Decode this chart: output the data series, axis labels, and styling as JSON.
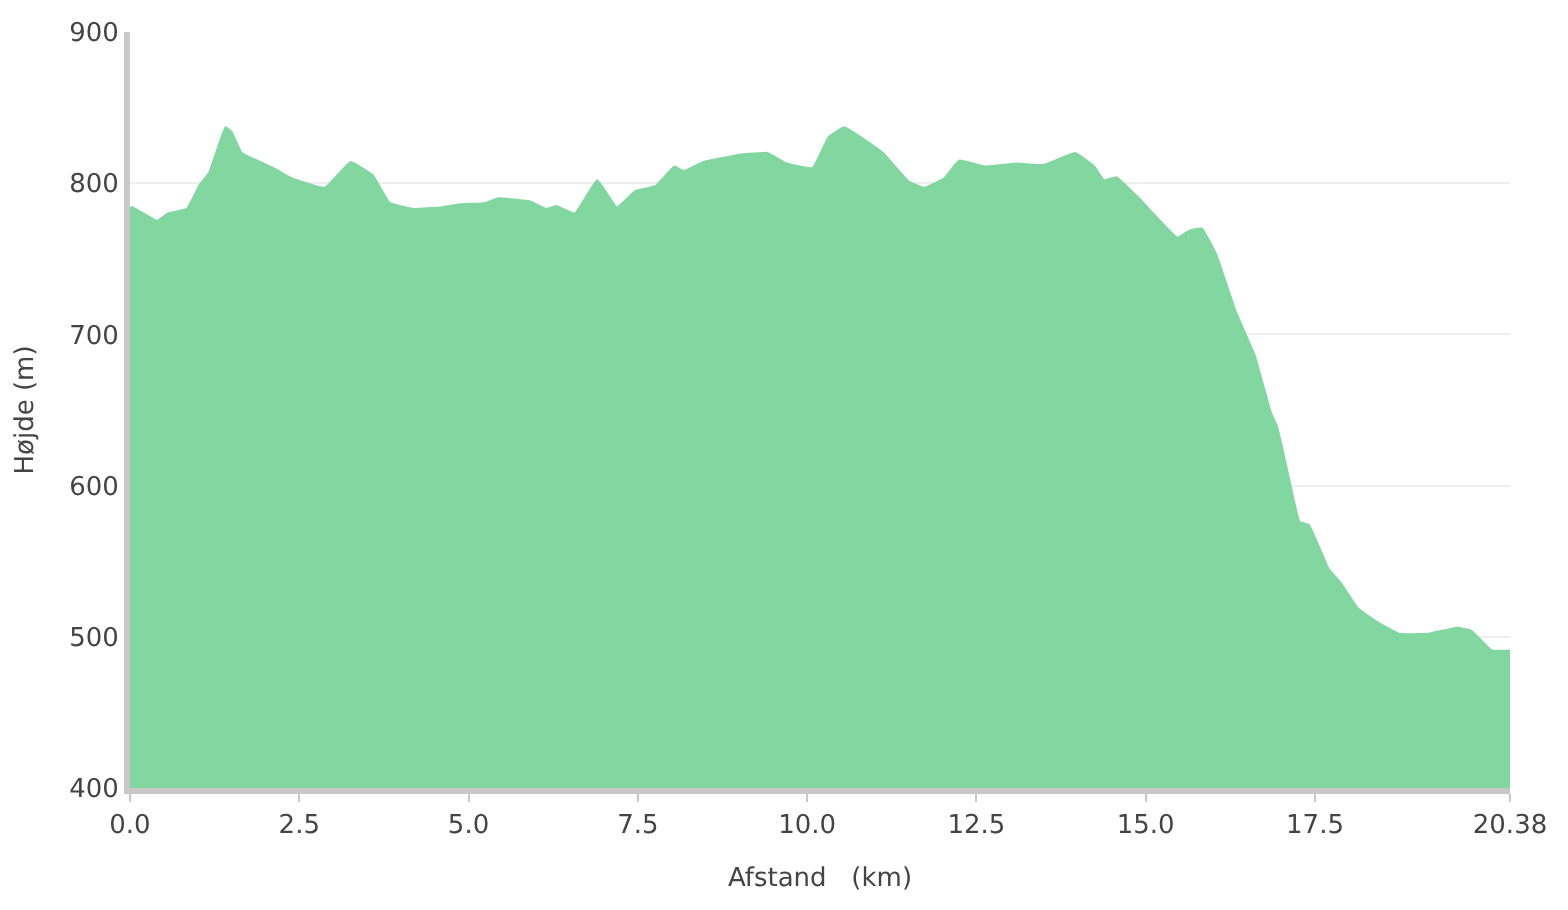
{
  "chart_data": {
    "type": "area",
    "xlabel": "Afstand   (km)",
    "ylabel": "Højde (m)",
    "color": "#82d6a0",
    "grid": "y",
    "x": [
      0,
      0.04,
      0.4,
      0.56,
      0.84,
      1.03,
      1.17,
      1.41,
      1.5,
      1.65,
      2.12,
      2.4,
      2.88,
      3.26,
      3.59,
      3.83,
      4.2,
      4.58,
      4.87,
      5.25,
      5.44,
      5.9,
      6.15,
      6.29,
      6.57,
      6.9,
      7.19,
      7.47,
      7.76,
      8.04,
      8.18,
      8.47,
      9.03,
      9.41,
      9.7,
      10.08,
      10.31,
      10.36,
      10.55,
      11.12,
      11.5,
      11.73,
      12.02,
      12.25,
      12.63,
      13.1,
      13.49,
      13.96,
      14.24,
      14.38,
      14.57,
      14.9,
      15.47,
      15.66,
      15.83,
      16.04,
      16.33,
      16.61,
      16.85,
      16.94,
      17.13,
      17.27,
      17.41,
      17.7,
      17.89,
      18.13,
      18.41,
      18.74,
      19.17,
      19.6,
      19.81,
      20.11,
      20.38
    ],
    "values": [
      784,
      784,
      775,
      780,
      783,
      799,
      807,
      837,
      834,
      820,
      810,
      803,
      797,
      814,
      805,
      787,
      783,
      784,
      786,
      787,
      790,
      788,
      783,
      785,
      780,
      802,
      784,
      795,
      798,
      811,
      808,
      814,
      819,
      820,
      813,
      810,
      830,
      832,
      837,
      820,
      801,
      797,
      803,
      815,
      811,
      813,
      812,
      820,
      811,
      802,
      804,
      790,
      764,
      769,
      770,
      753,
      715,
      686,
      648,
      639,
      602,
      576,
      574,
      545,
      535,
      519,
      510,
      502,
      502,
      506,
      504,
      491,
      491
    ],
    "xlim": [
      0,
      20.38
    ],
    "xticks": [
      {
        "value": 0,
        "label": "0.0"
      },
      2.5,
      {
        "value": 5,
        "label": "5.0"
      },
      7.5,
      {
        "value": 10,
        "label": "10.0"
      },
      12.5,
      {
        "value": 15,
        "label": "15.0"
      },
      17.5,
      20.38
    ],
    "ylim": [
      400,
      900
    ],
    "yticks": [
      400,
      500,
      600,
      700,
      800,
      900
    ]
  }
}
